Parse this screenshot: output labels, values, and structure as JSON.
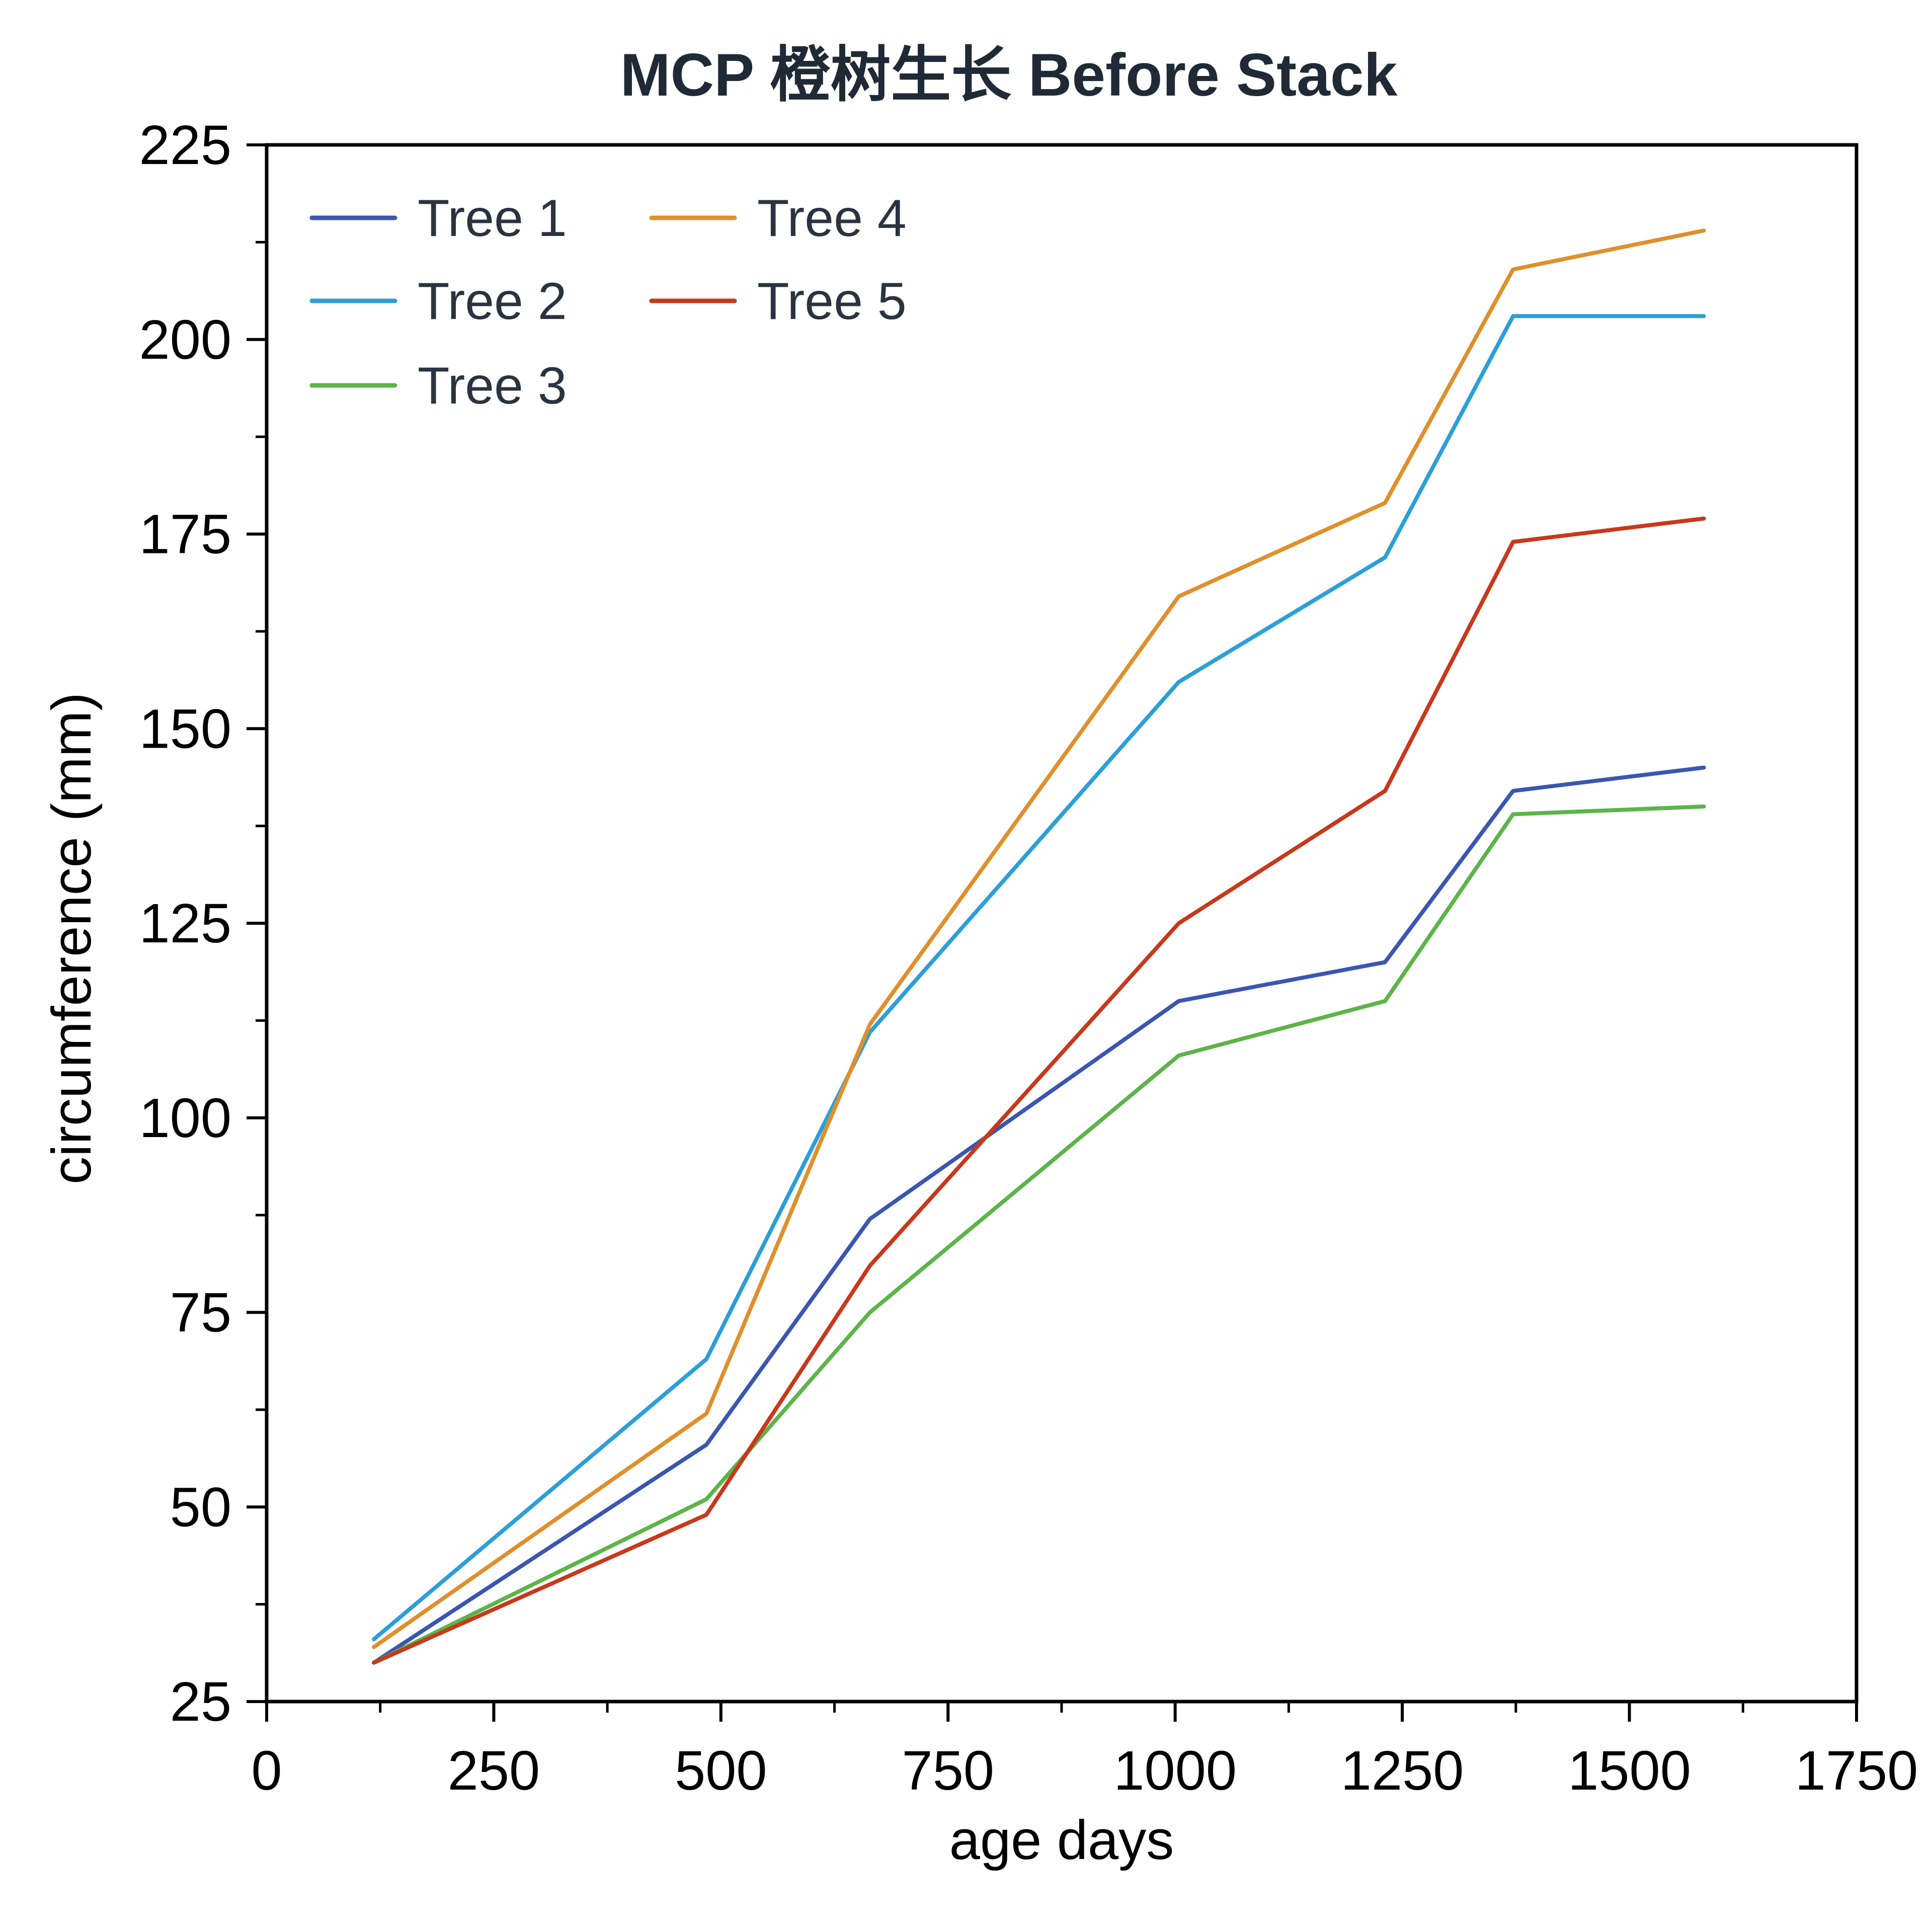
{
  "chart_data": {
    "type": "line",
    "title": "MCP 橙树生长 Before Stack",
    "xlabel": "age days",
    "ylabel": "circumference (mm)",
    "xlim": [
      0,
      1750
    ],
    "ylim": [
      25,
      225
    ],
    "xticks": [
      0,
      250,
      500,
      750,
      1000,
      1250,
      1500,
      1750
    ],
    "yticks": [
      25,
      50,
      75,
      100,
      125,
      150,
      175,
      200,
      225
    ],
    "grid": false,
    "legend_position": "top-left",
    "x": [
      118,
      484,
      664,
      1004,
      1231,
      1372,
      1582
    ],
    "series": [
      {
        "name": "Tree 1",
        "color": "#3a56b0",
        "values": [
          30,
          58,
          87,
          115,
          120,
          142,
          145
        ]
      },
      {
        "name": "Tree 2",
        "color": "#2b9fd9",
        "values": [
          33,
          69,
          111,
          156,
          172,
          203,
          203
        ]
      },
      {
        "name": "Tree 3",
        "color": "#5db448",
        "values": [
          30,
          51,
          75,
          108,
          115,
          139,
          140
        ]
      },
      {
        "name": "Tree 4",
        "color": "#e08f2b",
        "values": [
          32,
          62,
          112,
          167,
          179,
          209,
          214
        ]
      },
      {
        "name": "Tree 5",
        "color": "#c8381b",
        "values": [
          30,
          49,
          81,
          125,
          142,
          174,
          177
        ]
      }
    ]
  }
}
